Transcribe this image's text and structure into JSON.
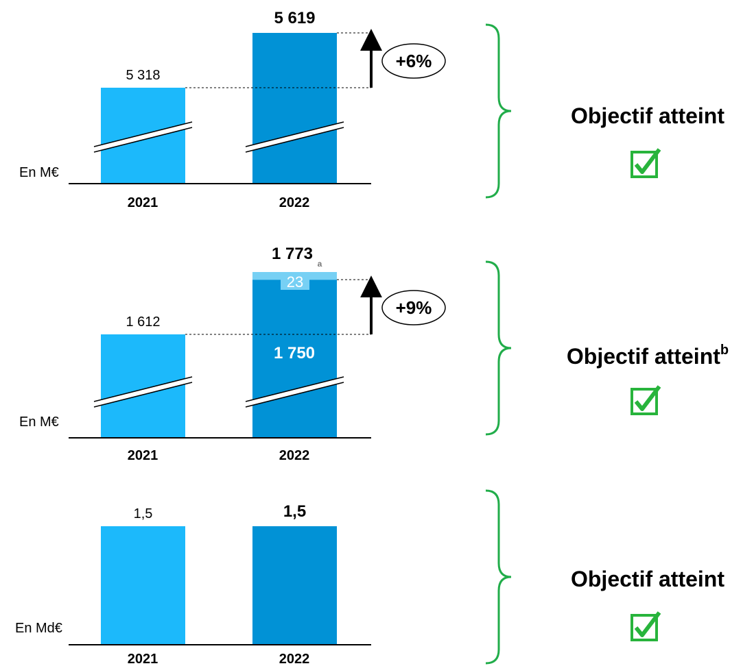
{
  "colors": {
    "bar_2021": "#1cb9fb",
    "bar_2022": "#0192d6",
    "bar_2022_top": "#77d0f4",
    "brace": "#21ad4a",
    "check": "#28b43c",
    "axis": "#000000"
  },
  "chart_data": [
    {
      "type": "bar",
      "unit_label": "En M€",
      "categories": [
        "2021",
        "2022"
      ],
      "values": [
        5318,
        5619
      ],
      "value_labels": [
        "5 318",
        "5 619"
      ],
      "axis_break": true,
      "growth_label": "+6%",
      "status": "Objectif atteint",
      "status_sup": "",
      "check_icon": "checked-box-icon"
    },
    {
      "type": "bar",
      "stacked": true,
      "unit_label": "En M€",
      "categories": [
        "2021",
        "2022"
      ],
      "values": [
        1612,
        1773
      ],
      "value_labels": [
        "1 612",
        "1 773"
      ],
      "segments_2022": [
        {
          "value": 1750,
          "label": "1 750"
        },
        {
          "value": 23,
          "label": "23"
        }
      ],
      "footnote_a": "a",
      "axis_break": true,
      "growth_label": "+9%",
      "status": "Objectif atteint",
      "status_sup": "b",
      "check_icon": "checked-box-icon"
    },
    {
      "type": "bar",
      "unit_label": "En Md€",
      "categories": [
        "2021",
        "2022"
      ],
      "values": [
        1.5,
        1.5
      ],
      "value_labels": [
        "1,5",
        "1,5"
      ],
      "axis_break": false,
      "growth_label": "",
      "status": "Objectif atteint",
      "status_sup": "",
      "check_icon": "checked-box-icon"
    }
  ]
}
